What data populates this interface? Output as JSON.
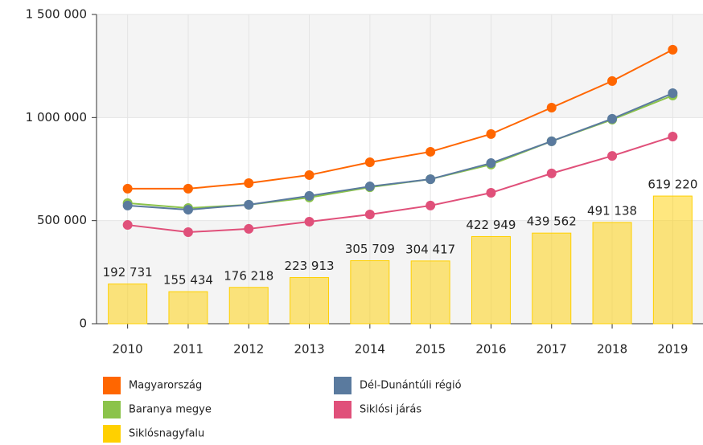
{
  "chart_data": {
    "type": "combo",
    "categories": [
      "2010",
      "2011",
      "2012",
      "2013",
      "2014",
      "2015",
      "2016",
      "2017",
      "2018",
      "2019"
    ],
    "ylim": [
      0,
      1500000
    ],
    "yticks": [
      0,
      {
        "value": 500000,
        "label": "500 000"
      },
      {
        "value": 1000000,
        "label": "1 000 000"
      },
      {
        "value": 1500000,
        "label": "1 500 000"
      }
    ],
    "grid": true,
    "series": [
      {
        "name": "Siklósnagyfalu",
        "type": "bar",
        "color": "#ffd000",
        "values": [
          192731,
          155434,
          176218,
          223913,
          305709,
          304417,
          422949,
          439562,
          491138,
          619220
        ],
        "value_labels": [
          "192 731",
          "155 434",
          "176 218",
          "223 913",
          "305 709",
          "304 417",
          "422 949",
          "439 562",
          "491 138",
          "619 220"
        ]
      },
      {
        "name": "Magyarország",
        "type": "line",
        "color": "#ff6600",
        "values": [
          655000,
          655000,
          682000,
          721000,
          783000,
          834000,
          920000,
          1048000,
          1177000,
          1329000
        ]
      },
      {
        "name": "Dél-Dunántúli régió",
        "type": "line",
        "color": "#5a7a9e",
        "values": [
          573000,
          553000,
          577000,
          620000,
          666000,
          701000,
          779000,
          885000,
          994000,
          1118000
        ]
      },
      {
        "name": "Baranya megye",
        "type": "line",
        "color": "#8bc34a",
        "values": [
          585000,
          561000,
          577000,
          612000,
          662000,
          701000,
          772000,
          885000,
          990000,
          1107000
        ]
      },
      {
        "name": "Siklósi járás",
        "type": "line",
        "color": "#e0507a",
        "values": [
          479000,
          444000,
          460000,
          495000,
          530000,
          573000,
          635000,
          729000,
          814000,
          908000
        ]
      }
    ]
  }
}
